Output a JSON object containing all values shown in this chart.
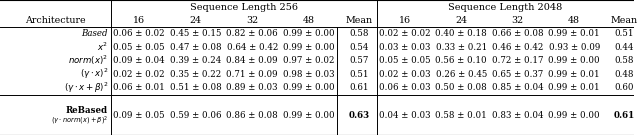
{
  "header1_256": "Sequence Length 256",
  "header1_2048": "Sequence Length 2048",
  "col_labels": [
    "16",
    "24",
    "32",
    "48"
  ],
  "mean_label": "Mean",
  "arch_label": "Architecture",
  "rows": [
    {
      "arch": "Based",
      "arch_style": "italic_serif",
      "d256": [
        "0.06 ± 0.02",
        "0.45 ± 0.15",
        "0.82 ± 0.06",
        "0.99 ± 0.00"
      ],
      "m256": "0.58",
      "d2048": [
        "0.02 ± 0.02",
        "0.40 ± 0.18",
        "0.66 ± 0.08",
        "0.99 ± 0.01"
      ],
      "m2048": "0.51"
    },
    {
      "arch": "$x^2$",
      "arch_style": "math",
      "d256": [
        "0.05 ± 0.05",
        "0.47 ± 0.08",
        "0.64 ± 0.42",
        "0.99 ± 0.00"
      ],
      "m256": "0.54",
      "d2048": [
        "0.03 ± 0.03",
        "0.33 ± 0.21",
        "0.46 ± 0.42",
        "0.93 ± 0.09"
      ],
      "m2048": "0.44"
    },
    {
      "arch": "$norm(x)^2$",
      "arch_style": "math",
      "d256": [
        "0.09 ± 0.04",
        "0.39 ± 0.24",
        "0.84 ± 0.09",
        "0.97 ± 0.02"
      ],
      "m256": "0.57",
      "d2048": [
        "0.05 ± 0.05",
        "0.56 ± 0.10",
        "0.72 ± 0.17",
        "0.99 ± 0.00"
      ],
      "m2048": "0.58"
    },
    {
      "arch": "$(\\gamma \\cdot x)^2$",
      "arch_style": "math",
      "d256": [
        "0.02 ± 0.02",
        "0.35 ± 0.22",
        "0.71 ± 0.09",
        "0.98 ± 0.03"
      ],
      "m256": "0.51",
      "d2048": [
        "0.02 ± 0.03",
        "0.26 ± 0.45",
        "0.65 ± 0.37",
        "0.99 ± 0.01"
      ],
      "m2048": "0.48"
    },
    {
      "arch": "$(\\gamma \\cdot x + \\beta)^2$",
      "arch_style": "math",
      "d256": [
        "0.06 ± 0.01",
        "0.51 ± 0.08",
        "0.89 ± 0.03",
        "0.99 ± 0.00"
      ],
      "m256": "0.61",
      "d2048": [
        "0.06 ± 0.03",
        "0.50 ± 0.08",
        "0.85 ± 0.04",
        "0.99 ± 0.01"
      ],
      "m2048": "0.60"
    }
  ],
  "rebased": {
    "arch_line1": "ReBased",
    "arch_line2": "$(\\gamma \\cdot norm(x) + \\beta)^2$",
    "d256": [
      "0.09 ± 0.05",
      "0.59 ± 0.06",
      "0.86 ± 0.08",
      "0.99 ± 0.00"
    ],
    "m256": "0.63",
    "d2048": [
      "0.04 ± 0.03",
      "0.58 ± 0.01",
      "0.83 ± 0.04",
      "0.99 ± 0.00"
    ],
    "m2048": "0.61"
  },
  "fs_header1": 7.0,
  "fs_header2": 6.8,
  "fs_data": 6.2,
  "fs_arch": 6.2,
  "fs_rebased_sub": 4.8
}
